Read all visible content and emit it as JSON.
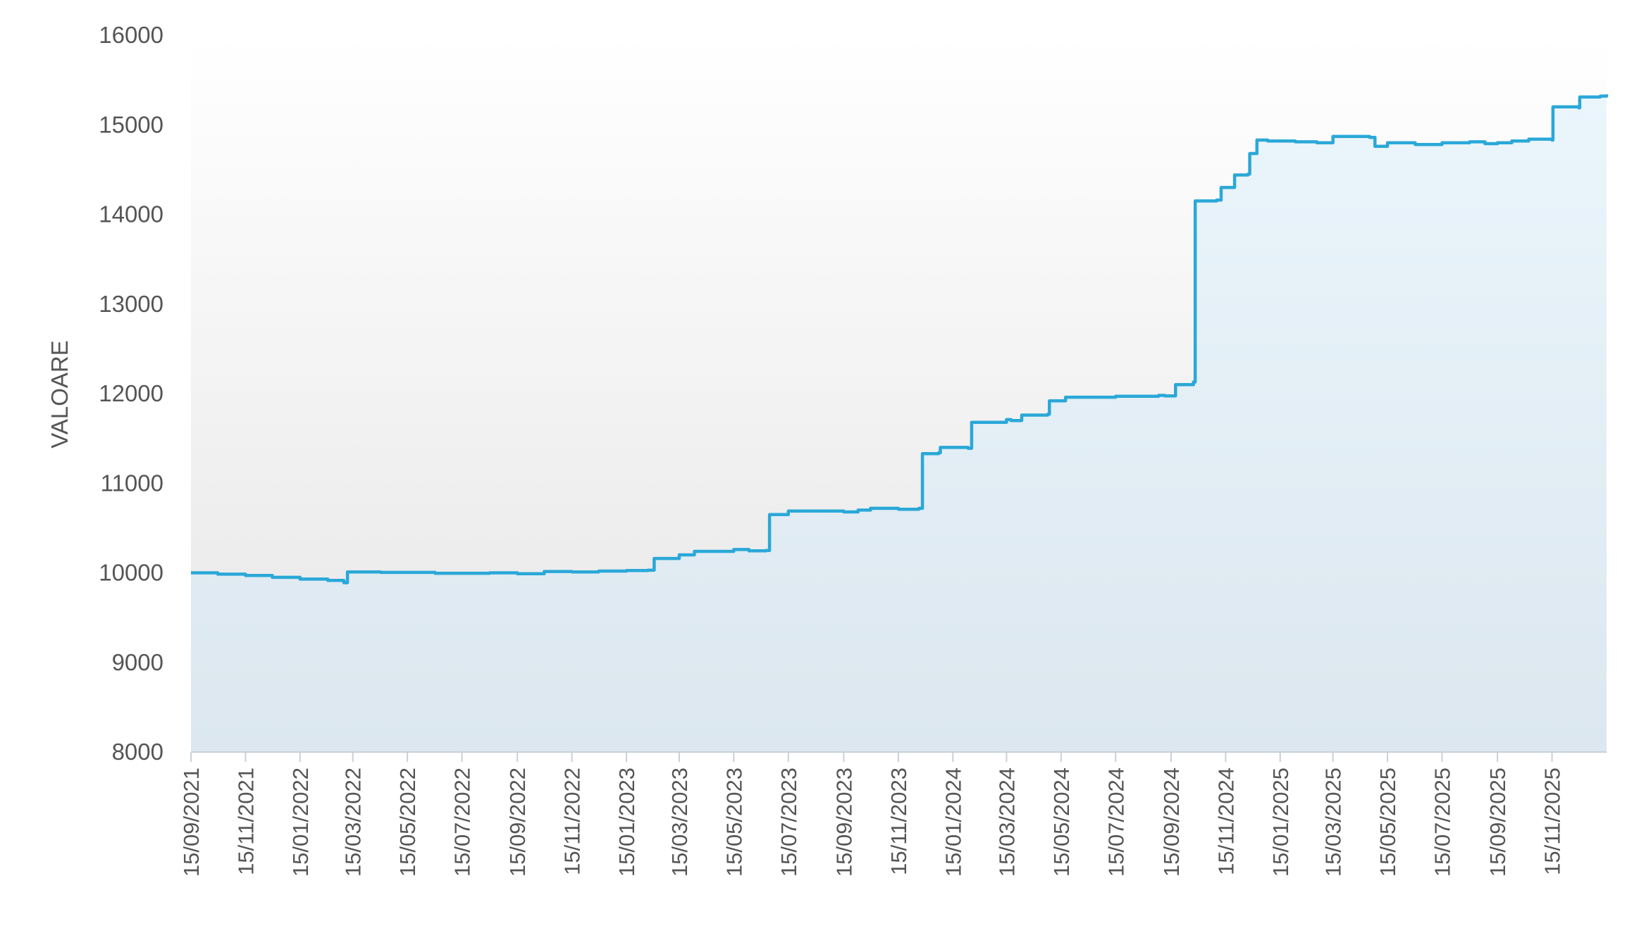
{
  "chart_data": {
    "type": "area",
    "title": "",
    "xlabel": "",
    "ylabel": "VALOARE",
    "ylim": [
      8000,
      16000
    ],
    "yticks": [
      8000,
      9000,
      10000,
      11000,
      12000,
      13000,
      14000,
      15000,
      16000
    ],
    "xlim": [
      "2021-09-15",
      "2026-01-15"
    ],
    "xticks": [
      "15/09/2021",
      "15/11/2021",
      "15/01/2022",
      "15/03/2022",
      "15/05/2022",
      "15/07/2022",
      "15/09/2022",
      "15/11/2022",
      "15/01/2023",
      "15/03/2023",
      "15/05/2023",
      "15/07/2023",
      "15/09/2023",
      "15/11/2023",
      "15/01/2024",
      "15/03/2024",
      "15/05/2024",
      "15/07/2024",
      "15/09/2024",
      "15/11/2024",
      "15/01/2025",
      "15/03/2025",
      "15/05/2025",
      "15/07/2025",
      "15/09/2025",
      "15/11/2025"
    ],
    "grid": false,
    "legend": "none",
    "colors": {
      "line": "#2aa8d8",
      "fill_top": "#e8f4fb",
      "fill_bottom": "#dde8f0",
      "axis": "#c8d0d6",
      "text": "#555555"
    },
    "series": [
      {
        "x": [
          "2021-09-15",
          "2021-10-15",
          "2021-11-15",
          "2021-12-15",
          "2022-01-15",
          "2022-02-15",
          "2022-03-05",
          "2022-03-09",
          "2022-04-15",
          "2022-06-15",
          "2022-08-15",
          "2022-09-15",
          "2022-10-15",
          "2022-11-15",
          "2022-12-15",
          "2023-01-15",
          "2023-02-08",
          "2023-02-15",
          "2023-03-15",
          "2023-04-01",
          "2023-05-15",
          "2023-06-01",
          "2023-06-20",
          "2023-06-24",
          "2023-07-15",
          "2023-08-15",
          "2023-09-15",
          "2023-10-01",
          "2023-10-15",
          "2023-11-15",
          "2023-12-08",
          "2023-12-12",
          "2023-12-30",
          "2024-01-01",
          "2024-02-01",
          "2024-02-05",
          "2024-03-15",
          "2024-03-20",
          "2024-04-01",
          "2024-04-30",
          "2024-05-02",
          "2024-05-20",
          "2024-07-15",
          "2024-09-01",
          "2024-09-08",
          "2024-09-20",
          "2024-10-10",
          "2024-10-12",
          "2024-11-05",
          "2024-11-10",
          "2024-11-25",
          "2024-12-10",
          "2024-12-12",
          "2024-12-20",
          "2025-01-01",
          "2025-02-01",
          "2025-02-25",
          "2025-03-15",
          "2025-04-25",
          "2025-05-01",
          "2025-05-15",
          "2025-06-15",
          "2025-07-15",
          "2025-08-15",
          "2025-09-01",
          "2025-09-15",
          "2025-10-01",
          "2025-10-20",
          "2025-11-15",
          "2025-11-16",
          "2025-12-15",
          "2025-12-16",
          "2026-01-08",
          "2026-01-15"
        ],
        "y": [
          10000,
          9985,
          9970,
          9950,
          9930,
          9915,
          9890,
          10010,
          10005,
          9995,
          10000,
          9990,
          10015,
          10010,
          10020,
          10025,
          10030,
          10160,
          10200,
          10240,
          10260,
          10245,
          10250,
          10650,
          10690,
          10690,
          10680,
          10700,
          10720,
          10710,
          10720,
          11330,
          11340,
          11400,
          11390,
          11680,
          11710,
          11700,
          11760,
          11770,
          11920,
          11960,
          11970,
          11980,
          11975,
          12100,
          12130,
          14150,
          14160,
          14300,
          14440,
          14450,
          14680,
          14830,
          14820,
          14810,
          14800,
          14870,
          14860,
          14760,
          14800,
          14780,
          14800,
          14810,
          14790,
          14800,
          14820,
          14840,
          14830,
          15200,
          15190,
          15310,
          15320,
          15340
        ]
      }
    ]
  }
}
